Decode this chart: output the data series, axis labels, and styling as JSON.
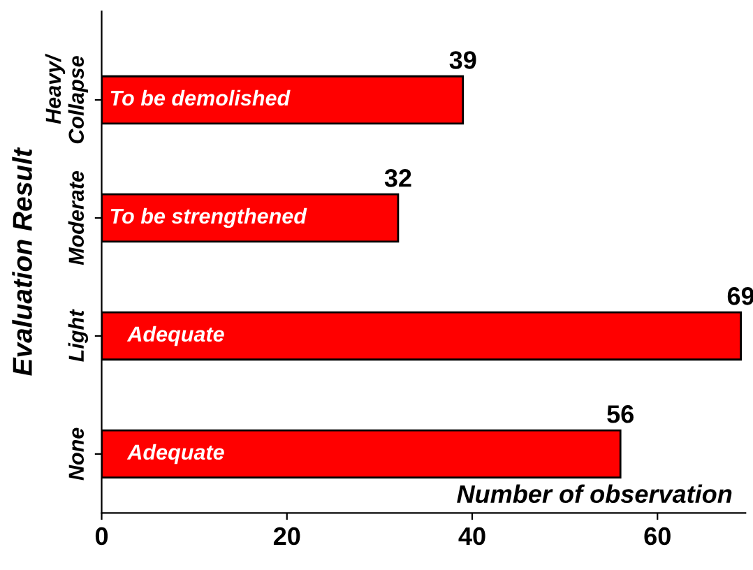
{
  "chart_data": {
    "type": "bar",
    "orientation": "horizontal",
    "ylabel": "Evaluation Result",
    "xlabel": "Number of observation",
    "categories": [
      "Heavy/\nCollapse",
      "Moderate",
      "Light",
      "None"
    ],
    "values": [
      39,
      32,
      69,
      56
    ],
    "color": "#ff0000",
    "data_labels": true,
    "xlim": [
      0,
      69.5
    ],
    "xticks": [
      0,
      20,
      40,
      60
    ],
    "grid": false,
    "legend": false,
    "annotations": [
      "To be demolished",
      "To be strengthened",
      "Adequate",
      "Adequate"
    ]
  }
}
